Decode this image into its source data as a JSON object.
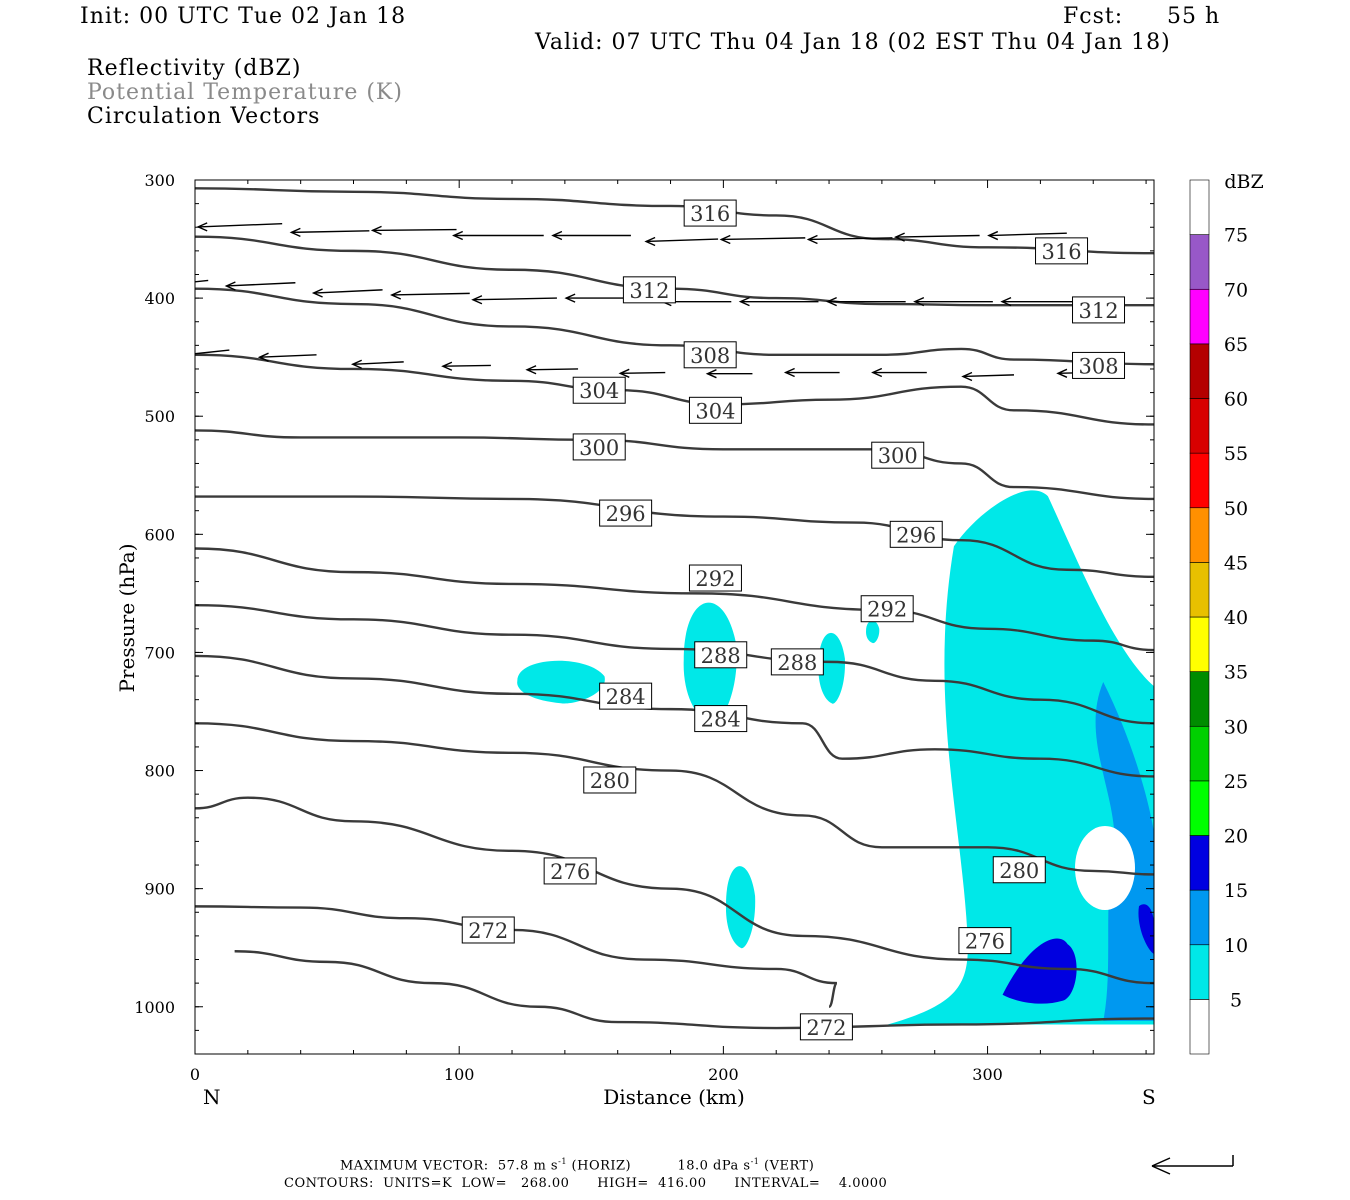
{
  "header": {
    "init": "Init: 00 UTC Tue 02 Jan 18",
    "fcst_label": "Fcst:",
    "fcst_value": "55 h",
    "valid": "Valid: 07 UTC Thu 04 Jan 18 (02 EST Thu 04 Jan 18)"
  },
  "legend_lines": {
    "line1": "Reflectivity (dBZ)",
    "line2": "Potential Temperature (K)",
    "line3": "Circulation Vectors"
  },
  "footer": {
    "maxvec_prefix": "MAXIMUM VECTOR:  57.8 m s",
    "maxvec_exp": "-1",
    "maxvec_mid": " (HORIZ)          18.0 dPa s",
    "maxvec_exp2": "-1",
    "maxvec_suffix": " (VERT)",
    "contours": "CONTOURS:  UNITS=K  LOW=   268.00      HIGH=  416.00      INTERVAL=    4.0000"
  },
  "chart_data": {
    "type": "cross-section",
    "xlabel": "Distance (km)",
    "ylabel": "Pressure (hPa)",
    "x_left_label": "N",
    "x_right_label": "S",
    "xlim": [
      0,
      363
    ],
    "ylim": [
      1040,
      300
    ],
    "x_ticks": [
      0,
      100,
      200,
      300
    ],
    "y_ticks": [
      300,
      400,
      500,
      600,
      700,
      800,
      900,
      1000
    ],
    "colorbar": {
      "title": "dBZ",
      "levels": [
        5,
        10,
        15,
        20,
        25,
        30,
        35,
        40,
        45,
        50,
        55,
        60,
        65,
        70,
        75
      ],
      "colors": [
        "#ffffff",
        "#00e8e8",
        "#0098f0",
        "#0000e0",
        "#00ff00",
        "#00d000",
        "#008c00",
        "#ffff00",
        "#e8c000",
        "#ff9000",
        "#ff0000",
        "#d80000",
        "#b40000",
        "#ff00ff",
        "#9858c8",
        "#ffffff"
      ]
    },
    "theta_contours": [
      {
        "level": 316,
        "label_positions": [
          [
            195,
            328
          ],
          [
            328,
            360
          ]
        ],
        "points": [
          [
            0,
            307
          ],
          [
            60,
            310
          ],
          [
            120,
            316
          ],
          [
            180,
            322
          ],
          [
            220,
            330
          ],
          [
            260,
            350
          ],
          [
            300,
            357
          ],
          [
            363,
            362
          ]
        ]
      },
      {
        "level": 312,
        "points": [
          [
            0,
            348
          ],
          [
            60,
            360
          ],
          [
            120,
            376
          ],
          [
            180,
            392
          ],
          [
            220,
            400
          ],
          [
            260,
            405
          ],
          [
            300,
            406
          ],
          [
            363,
            406
          ]
        ]
      },
      {
        "level": 308,
        "points": [
          [
            0,
            392
          ],
          [
            60,
            405
          ],
          [
            120,
            424
          ],
          [
            180,
            440
          ],
          [
            220,
            448
          ],
          [
            260,
            448
          ],
          [
            290,
            443
          ],
          [
            310,
            452
          ],
          [
            363,
            456
          ]
        ]
      },
      {
        "level": 304,
        "points": [
          [
            0,
            448
          ],
          [
            60,
            460
          ],
          [
            120,
            470
          ],
          [
            160,
            478
          ],
          [
            200,
            490
          ],
          [
            240,
            486
          ],
          [
            290,
            475
          ],
          [
            310,
            495
          ],
          [
            363,
            507
          ]
        ]
      },
      {
        "level": 300,
        "points": [
          [
            0,
            512
          ],
          [
            40,
            518
          ],
          [
            100,
            518
          ],
          [
            150,
            520
          ],
          [
            200,
            528
          ],
          [
            260,
            528
          ],
          [
            290,
            540
          ],
          [
            310,
            560
          ],
          [
            363,
            570
          ]
        ]
      },
      {
        "level": 296,
        "points": [
          [
            0,
            568
          ],
          [
            60,
            568
          ],
          [
            120,
            570
          ],
          [
            200,
            585
          ],
          [
            250,
            590
          ],
          [
            290,
            605
          ],
          [
            330,
            630
          ],
          [
            363,
            636
          ]
        ]
      },
      {
        "level": 292,
        "points": [
          [
            0,
            612
          ],
          [
            60,
            632
          ],
          [
            120,
            642
          ],
          [
            190,
            650
          ],
          [
            260,
            664
          ],
          [
            300,
            680
          ],
          [
            340,
            690
          ],
          [
            363,
            698
          ]
        ]
      },
      {
        "level": 288,
        "points": [
          [
            0,
            660
          ],
          [
            60,
            672
          ],
          [
            120,
            685
          ],
          [
            180,
            697
          ],
          [
            240,
            708
          ],
          [
            280,
            724
          ],
          [
            320,
            740
          ],
          [
            363,
            760
          ]
        ]
      },
      {
        "level": 284,
        "points": [
          [
            0,
            703
          ],
          [
            60,
            722
          ],
          [
            120,
            735
          ],
          [
            180,
            748
          ],
          [
            230,
            760
          ],
          [
            245,
            790
          ],
          [
            280,
            782
          ],
          [
            320,
            790
          ],
          [
            363,
            805
          ]
        ]
      },
      {
        "level": 280,
        "points": [
          [
            0,
            760
          ],
          [
            60,
            775
          ],
          [
            120,
            785
          ],
          [
            180,
            800
          ],
          [
            230,
            838
          ],
          [
            260,
            865
          ],
          [
            300,
            865
          ],
          [
            340,
            885
          ],
          [
            363,
            888
          ]
        ]
      },
      {
        "level": 276,
        "points": [
          [
            0,
            832
          ],
          [
            20,
            823
          ],
          [
            60,
            843
          ],
          [
            120,
            868
          ],
          [
            180,
            900
          ],
          [
            230,
            940
          ],
          [
            290,
            960
          ],
          [
            330,
            968
          ],
          [
            363,
            980
          ]
        ]
      },
      {
        "level": 272,
        "points": [
          [
            0,
            915
          ],
          [
            40,
            916
          ],
          [
            80,
            925
          ],
          [
            120,
            935
          ],
          [
            170,
            960
          ],
          [
            220,
            968
          ],
          [
            243,
            980
          ],
          [
            240,
            1000
          ]
        ]
      },
      {
        "level": 272,
        "points": [
          [
            15,
            953
          ],
          [
            50,
            962
          ],
          [
            90,
            980
          ],
          [
            130,
            1000
          ],
          [
            160,
            1013
          ],
          [
            220,
            1018
          ],
          [
            290,
            1015
          ],
          [
            363,
            1010
          ]
        ]
      }
    ],
    "reflectivity_cells": [
      {
        "dbz": 5,
        "description": "large cell right side",
        "x_range": [
          285,
          363
        ],
        "p_range": [
          572,
          1015
        ]
      },
      {
        "dbz": 10,
        "x_range": [
          340,
          363
        ],
        "p_range": [
          725,
          1012
        ]
      },
      {
        "dbz": 15,
        "x_range": [
          300,
          363
        ],
        "p_range": [
          930,
          1000
        ]
      },
      {
        "dbz": 5,
        "x_range": [
          122,
          155
        ],
        "p_range": [
          705,
          743
        ]
      },
      {
        "dbz": 5,
        "x_range": [
          185,
          205
        ],
        "p_range": [
          652,
          760
        ]
      },
      {
        "dbz": 5,
        "x_range": [
          236,
          246
        ],
        "p_range": [
          680,
          743
        ]
      },
      {
        "dbz": 5,
        "x_range": [
          254,
          259
        ],
        "p_range": [
          672,
          692
        ]
      },
      {
        "dbz": 5,
        "x_range": [
          201,
          212
        ],
        "p_range": [
          877,
          950
        ]
      }
    ],
    "contour_labels": [
      {
        "text": "316",
        "x": 195,
        "p": 328
      },
      {
        "text": "316",
        "x": 328,
        "p": 360
      },
      {
        "text": "312",
        "x": 172,
        "p": 393
      },
      {
        "text": "312",
        "x": 342,
        "p": 410
      },
      {
        "text": "308",
        "x": 195,
        "p": 448
      },
      {
        "text": "308",
        "x": 342,
        "p": 457
      },
      {
        "text": "304",
        "x": 153,
        "p": 478
      },
      {
        "text": "304",
        "x": 197,
        "p": 495
      },
      {
        "text": "300",
        "x": 153,
        "p": 526
      },
      {
        "text": "300",
        "x": 266,
        "p": 533
      },
      {
        "text": "296",
        "x": 163,
        "p": 582
      },
      {
        "text": "296",
        "x": 273,
        "p": 600
      },
      {
        "text": "292",
        "x": 197,
        "p": 637
      },
      {
        "text": "292",
        "x": 262,
        "p": 663
      },
      {
        "text": "288",
        "x": 199,
        "p": 702
      },
      {
        "text": "288",
        "x": 228,
        "p": 708
      },
      {
        "text": "284",
        "x": 163,
        "p": 737
      },
      {
        "text": "284",
        "x": 199,
        "p": 756
      },
      {
        "text": "280",
        "x": 157,
        "p": 808
      },
      {
        "text": "280",
        "x": 312,
        "p": 884
      },
      {
        "text": "276",
        "x": 142,
        "p": 885
      },
      {
        "text": "276",
        "x": 299,
        "p": 944
      },
      {
        "text": "272",
        "x": 111,
        "p": 935
      },
      {
        "text": "272",
        "x": 239,
        "p": 1017
      }
    ],
    "vectors": [
      {
        "x": 0,
        "p": 340,
        "u": 28,
        "w": 0.5
      },
      {
        "x": 33,
        "p": 337,
        "u": 28,
        "w": 0.4
      },
      {
        "x": 66,
        "p": 343,
        "u": 26,
        "w": 0.2
      },
      {
        "x": 99,
        "p": 342,
        "u": 28,
        "w": 0.1
      },
      {
        "x": 132,
        "p": 347,
        "u": 30,
        "w": 0
      },
      {
        "x": 165,
        "p": 347,
        "u": 26,
        "w": 0
      },
      {
        "x": 198,
        "p": 350,
        "u": 24,
        "w": 0.3
      },
      {
        "x": 231,
        "p": 349,
        "u": 28,
        "w": 0.2
      },
      {
        "x": 264,
        "p": 349,
        "u": 28,
        "w": 0.2
      },
      {
        "x": 297,
        "p": 347,
        "u": 28,
        "w": 0.2
      },
      {
        "x": 330,
        "p": 345,
        "u": 26,
        "w": 0.3
      },
      {
        "x": 5,
        "p": 385,
        "u": 20,
        "w": 0.8
      },
      {
        "x": 38,
        "p": 387,
        "u": 23,
        "w": 0.4
      },
      {
        "x": 71,
        "p": 393,
        "u": 23,
        "w": 0.4
      },
      {
        "x": 104,
        "p": 396,
        "u": 26,
        "w": 0.2
      },
      {
        "x": 137,
        "p": 400,
        "u": 28,
        "w": 0.2
      },
      {
        "x": 170,
        "p": 400,
        "u": 26,
        "w": 0
      },
      {
        "x": 203,
        "p": 403,
        "u": 23,
        "w": 0
      },
      {
        "x": 236,
        "p": 403,
        "u": 26,
        "w": 0
      },
      {
        "x": 269,
        "p": 403,
        "u": 26,
        "w": 0
      },
      {
        "x": 302,
        "p": 403,
        "u": 26,
        "w": 0
      },
      {
        "x": 335,
        "p": 403,
        "u": 26,
        "w": 0
      },
      {
        "x": 13,
        "p": 444,
        "u": 20,
        "w": 0.8
      },
      {
        "x": 46,
        "p": 448,
        "u": 19,
        "w": 0.3
      },
      {
        "x": 79,
        "p": 454,
        "u": 17,
        "w": 0.3
      },
      {
        "x": 112,
        "p": 457,
        "u": 16,
        "w": 0.1
      },
      {
        "x": 145,
        "p": 460,
        "u": 17,
        "w": 0.1
      },
      {
        "x": 178,
        "p": 463,
        "u": 15,
        "w": 0.1
      },
      {
        "x": 211,
        "p": 464,
        "u": 15,
        "w": 0
      },
      {
        "x": 244,
        "p": 463,
        "u": 18,
        "w": 0
      },
      {
        "x": 277,
        "p": 463,
        "u": 18,
        "w": 0
      },
      {
        "x": 310,
        "p": 465,
        "u": 17,
        "w": 0.2
      },
      {
        "x": 338,
        "p": 463,
        "u": 10,
        "w": 0.1
      }
    ]
  }
}
